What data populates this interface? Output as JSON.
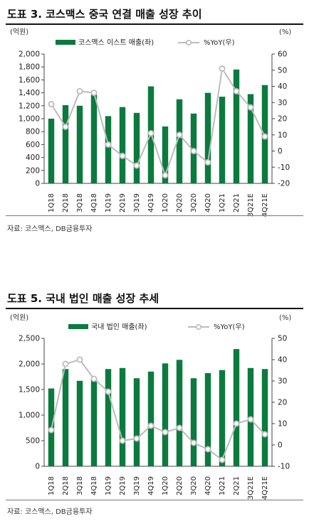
{
  "charts": [
    {
      "title": "도표 3. 코스맥스 중국 연결 매출 성장 추이",
      "left_unit": "(억원)",
      "right_unit": "(%)",
      "legend": {
        "bar": "코스맥스 이스트 매출(좌)",
        "line": "%YoY(우)"
      },
      "source": "자료: 코스맥스, DB금융투자"
    },
    {
      "title": "도표 5. 국내 법인 매출 성장 추세",
      "left_unit": "(억원)",
      "right_unit": "(%)",
      "legend": {
        "bar": "국내 법인 매출(좌)",
        "line": "%YoY(우)"
      },
      "source": "자료: 코스맥스, DB금융투자"
    }
  ],
  "colors": {
    "bar": "#0b7a3e",
    "line": "#bcbcbc",
    "marker_fill": "#ffffff",
    "axis": "#444444"
  },
  "chart_data": [
    {
      "type": "bar",
      "categories": [
        "1Q18",
        "2Q18",
        "3Q18",
        "4Q18",
        "1Q19",
        "2Q19",
        "3Q19",
        "4Q19",
        "1Q20",
        "2Q20",
        "3Q20",
        "4Q20",
        "1Q21",
        "2Q21",
        "3Q21E",
        "4Q21E"
      ],
      "series": [
        {
          "name": "코스맥스 이스트 매출(좌)",
          "type": "bar",
          "axis": "left",
          "values": [
            1000,
            1210,
            1200,
            1370,
            1040,
            1180,
            1090,
            1500,
            880,
            1300,
            1080,
            1400,
            1340,
            1760,
            1380,
            1520
          ]
        },
        {
          "name": "%YoY(우)",
          "type": "line",
          "axis": "right",
          "values": [
            29,
            15,
            37,
            36,
            4,
            -3,
            -9,
            11,
            -15,
            10,
            0,
            -7,
            51,
            37,
            27,
            9
          ]
        }
      ],
      "ylim_left": [
        0,
        2000
      ],
      "yticks_left": [
        0,
        200,
        400,
        600,
        800,
        1000,
        1200,
        1400,
        1600,
        1800,
        2000
      ],
      "ylim_right": [
        -20,
        60
      ],
      "yticks_right": [
        -20,
        -10,
        0,
        10,
        20,
        30,
        40,
        50,
        60
      ],
      "ylabel_left": "(억원)",
      "ylabel_right": "(%)",
      "legend": "top",
      "grid": false
    },
    {
      "type": "bar",
      "categories": [
        "1Q18",
        "2Q18",
        "3Q18",
        "4Q18",
        "1Q19",
        "2Q19",
        "3Q19",
        "4Q19",
        "1Q20",
        "2Q20",
        "3Q20",
        "4Q20",
        "1Q21",
        "2Q21",
        "3Q21E",
        "4Q21E"
      ],
      "series": [
        {
          "name": "국내 법인 매출(좌)",
          "type": "bar",
          "axis": "left",
          "values": [
            1520,
            1900,
            1670,
            1700,
            1900,
            1920,
            1720,
            1850,
            2010,
            2080,
            1720,
            1820,
            1880,
            2290,
            1920,
            1900
          ]
        },
        {
          "name": "%YoY(우)",
          "type": "line",
          "axis": "right",
          "values": [
            7,
            38,
            40,
            31,
            25,
            2,
            3,
            9,
            6,
            8,
            1,
            -2,
            -7,
            10,
            12,
            5
          ]
        }
      ],
      "ylim_left": [
        0,
        2500
      ],
      "yticks_left": [
        0,
        500,
        1000,
        1500,
        2000,
        2500
      ],
      "ylim_right": [
        -10,
        50
      ],
      "yticks_right": [
        -10,
        0,
        10,
        20,
        30,
        40,
        50
      ],
      "ylabel_left": "(억원)",
      "ylabel_right": "(%)",
      "legend": "top",
      "grid": false
    }
  ]
}
